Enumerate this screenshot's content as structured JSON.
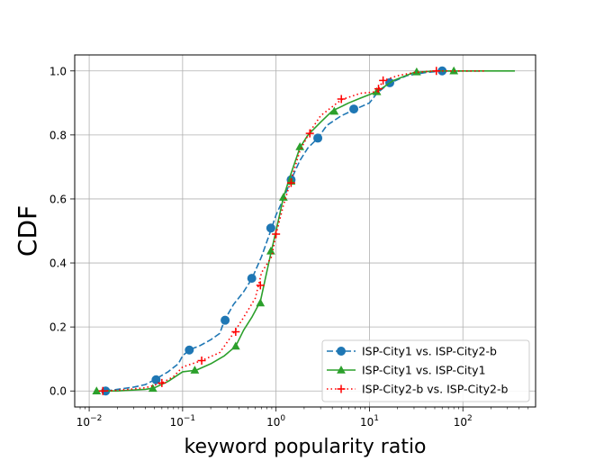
{
  "chart_data": {
    "type": "line",
    "title": "",
    "xlabel": "keyword popularity ratio",
    "ylabel": "CDF",
    "xscale": "log",
    "xlim": [
      0.007,
      600
    ],
    "ylim": [
      -0.05,
      1.05
    ],
    "grid": true,
    "legend_position": "lower-right",
    "x_ticks": [
      {
        "value": 0.01,
        "base": "10",
        "exp": "−2"
      },
      {
        "value": 0.1,
        "base": "10",
        "exp": "−1"
      },
      {
        "value": 1,
        "base": "10",
        "exp": "0"
      },
      {
        "value": 10,
        "base": "10",
        "exp": "1"
      },
      {
        "value": 100,
        "base": "10",
        "exp": "2"
      }
    ],
    "y_ticks": [
      {
        "value": 0.0,
        "label": "0.0"
      },
      {
        "value": 0.2,
        "label": "0.2"
      },
      {
        "value": 0.4,
        "label": "0.4"
      },
      {
        "value": 0.6,
        "label": "0.6"
      },
      {
        "value": 0.8,
        "label": "0.8"
      },
      {
        "value": 1.0,
        "label": "1.0"
      }
    ],
    "series": [
      {
        "name": "ISP-City1 vs. ISP-City2-b",
        "color": "#1f77b4",
        "linestyle": "dashed",
        "marker": "circle",
        "x": [
          0.015,
          0.02,
          0.03,
          0.04,
          0.05,
          0.07,
          0.09,
          0.1,
          0.12,
          0.15,
          0.2,
          0.25,
          0.28,
          0.35,
          0.45,
          0.55,
          0.7,
          0.9,
          1.0,
          1.2,
          1.45,
          1.8,
          2.2,
          2.8,
          3.5,
          5,
          7,
          10,
          12,
          16,
          25,
          40,
          60,
          100,
          150
        ],
        "y": [
          0.0,
          0.005,
          0.012,
          0.02,
          0.035,
          0.06,
          0.085,
          0.11,
          0.13,
          0.14,
          0.16,
          0.18,
          0.22,
          0.27,
          0.31,
          0.35,
          0.42,
          0.51,
          0.55,
          0.6,
          0.66,
          0.72,
          0.76,
          0.79,
          0.83,
          0.86,
          0.88,
          0.9,
          0.93,
          0.96,
          0.985,
          0.995,
          1.0,
          1.0,
          1.0
        ],
        "marker_x": [
          0.015,
          0.052,
          0.118,
          0.285,
          0.55,
          0.88,
          1.45,
          2.8,
          6.8,
          16.5,
          60
        ],
        "marker_y": [
          0.0,
          0.035,
          0.128,
          0.221,
          0.352,
          0.509,
          0.66,
          0.79,
          0.881,
          0.963,
          1.0
        ]
      },
      {
        "name": "ISP-City1 vs. ISP-City1",
        "color": "#2ca02c",
        "linestyle": "solid",
        "marker": "triangle",
        "x": [
          0.012,
          0.02,
          0.04,
          0.05,
          0.07,
          0.1,
          0.14,
          0.2,
          0.28,
          0.37,
          0.45,
          0.55,
          0.68,
          0.88,
          1.0,
          1.2,
          1.45,
          1.8,
          2.2,
          3,
          4,
          6,
          8,
          12,
          18,
          30,
          50,
          80,
          150,
          360
        ],
        "y": [
          0.0,
          0.0,
          0.005,
          0.01,
          0.03,
          0.06,
          0.065,
          0.085,
          0.11,
          0.14,
          0.19,
          0.23,
          0.28,
          0.43,
          0.5,
          0.605,
          0.68,
          0.76,
          0.8,
          0.84,
          0.875,
          0.9,
          0.915,
          0.935,
          0.97,
          0.995,
          1.0,
          1.0,
          1.0,
          1.0
        ],
        "marker_x": [
          0.012,
          0.048,
          0.135,
          0.37,
          0.68,
          0.88,
          1.2,
          1.45,
          1.8,
          4.2,
          12,
          32,
          80
        ],
        "marker_y": [
          0.0,
          0.008,
          0.065,
          0.14,
          0.275,
          0.437,
          0.605,
          0.655,
          0.763,
          0.874,
          0.935,
          0.997,
          1.0
        ]
      },
      {
        "name": "ISP-City2-b vs. ISP-City2-b",
        "color": "#ff0000",
        "linestyle": "dotted",
        "marker": "plus",
        "x": [
          0.014,
          0.02,
          0.04,
          0.06,
          0.08,
          0.1,
          0.16,
          0.25,
          0.35,
          0.45,
          0.6,
          0.7,
          0.9,
          1.0,
          1.2,
          1.45,
          1.8,
          2.3,
          3,
          5,
          8,
          12,
          14,
          20,
          30,
          50,
          80,
          170
        ],
        "y": [
          0.0,
          0.002,
          0.01,
          0.025,
          0.045,
          0.075,
          0.095,
          0.12,
          0.18,
          0.23,
          0.29,
          0.37,
          0.42,
          0.49,
          0.58,
          0.66,
          0.75,
          0.81,
          0.86,
          0.91,
          0.93,
          0.935,
          0.97,
          0.985,
          0.995,
          1.0,
          1.0,
          1.0
        ],
        "marker_x": [
          0.014,
          0.06,
          0.16,
          0.37,
          0.68,
          1.0,
          1.45,
          2.3,
          5,
          12.5,
          14,
          52
        ],
        "marker_y": [
          0.0,
          0.025,
          0.095,
          0.185,
          0.33,
          0.49,
          0.65,
          0.805,
          0.912,
          0.944,
          0.97,
          1.0
        ]
      }
    ]
  }
}
